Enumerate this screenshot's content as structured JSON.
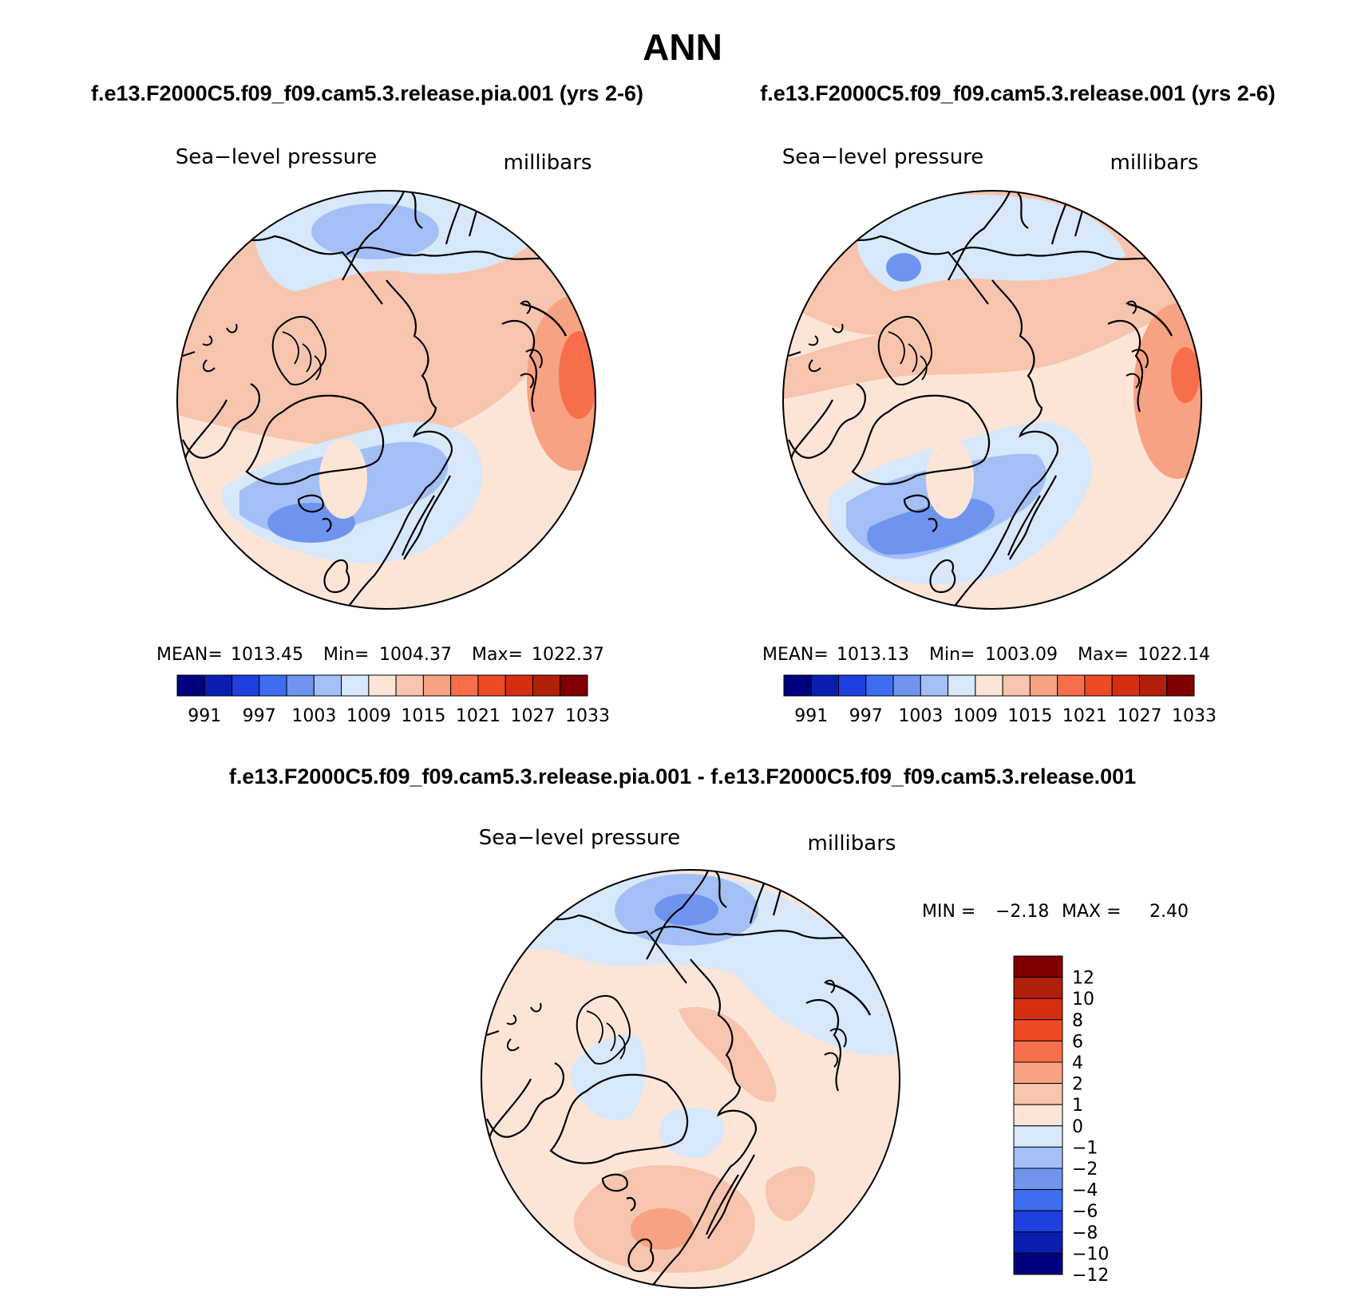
{
  "title": "ANN",
  "panel_titles": {
    "left": "f.e13.F2000C5.f09_f09.cam5.3.release.pia.001 (yrs 2-6)",
    "right": "f.e13.F2000C5.f09_f09.cam5.3.release.001 (yrs 2-6)",
    "diff": "f.e13.F2000C5.f09_f09.cam5.3.release.pia.001 - f.e13.F2000C5.f09_f09.cam5.3.release.001"
  },
  "chart_data": [
    {
      "type": "heatmap",
      "projection": "north polar stereographic",
      "variable": "Sea−level pressure",
      "units": "millibars",
      "stats": {
        "mean_label": "MEAN=",
        "mean": "1013.45",
        "min_label": "Min=",
        "min": "1004.37",
        "max_label": "Max=",
        "max": "1022.37"
      },
      "colorbar_levels": [
        "991",
        "997",
        "1003",
        "1009",
        "1015",
        "1021",
        "1027",
        "1033"
      ],
      "colorbar_colors": [
        "#00007f",
        "#0a1fb0",
        "#1f3fe0",
        "#3d6ef0",
        "#6e94f0",
        "#a3bff5",
        "#d6e8fa",
        "#fce5d7",
        "#f7c4ad",
        "#f7a283",
        "#f76f4a",
        "#ee4a25",
        "#d62f10",
        "#b0200a",
        "#7f0000"
      ]
    },
    {
      "type": "heatmap",
      "projection": "north polar stereographic",
      "variable": "Sea−level pressure",
      "units": "millibars",
      "stats": {
        "mean_label": "MEAN=",
        "mean": "1013.13",
        "min_label": "Min=",
        "min": "1003.09",
        "max_label": "Max=",
        "max": "1022.14"
      },
      "colorbar_levels": [
        "991",
        "997",
        "1003",
        "1009",
        "1015",
        "1021",
        "1027",
        "1033"
      ],
      "colorbar_colors": [
        "#00007f",
        "#0a1fb0",
        "#1f3fe0",
        "#3d6ef0",
        "#6e94f0",
        "#a3bff5",
        "#d6e8fa",
        "#fce5d7",
        "#f7c4ad",
        "#f7a283",
        "#f76f4a",
        "#ee4a25",
        "#d62f10",
        "#b0200a",
        "#7f0000"
      ]
    },
    {
      "type": "heatmap",
      "projection": "north polar stereographic",
      "variable": "Sea−level pressure",
      "units": "millibars",
      "stats": {
        "min_label": "MIN =",
        "min": "−2.18",
        "max_label": "MAX =",
        "max": "2.40"
      },
      "colorbar_levels": [
        "12",
        "10",
        "8",
        "6",
        "4",
        "2",
        "1",
        "0",
        "−1",
        "−2",
        "−4",
        "−6",
        "−8",
        "−10",
        "−12"
      ],
      "colorbar_colors": [
        "#7f0000",
        "#b0200a",
        "#d62f10",
        "#ee4a25",
        "#f76f4a",
        "#f7a283",
        "#f7c4ad",
        "#fce5d7",
        "#d6e8fa",
        "#a3bff5",
        "#6e94f0",
        "#3d6ef0",
        "#1f3fe0",
        "#0a1fb0",
        "#00007f"
      ]
    }
  ]
}
